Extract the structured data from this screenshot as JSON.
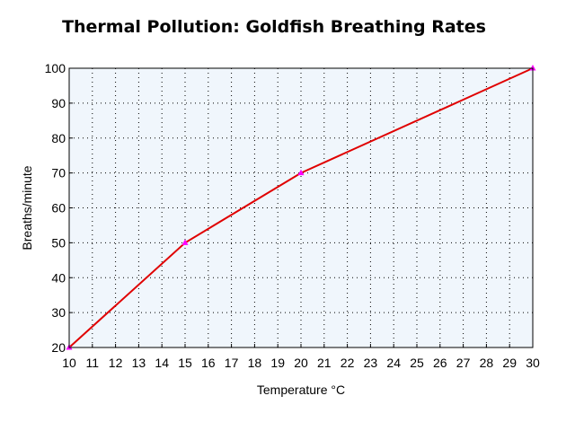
{
  "chart_data": {
    "type": "line",
    "title": "Thermal Pollution: Goldfish Breathing Rates",
    "xlabel": "Temperature °C",
    "ylabel": "Breaths/minute",
    "xlim": [
      10,
      30
    ],
    "ylim": [
      20,
      100
    ],
    "x_ticks": [
      10,
      11,
      12,
      13,
      14,
      15,
      16,
      17,
      18,
      19,
      20,
      21,
      22,
      23,
      24,
      25,
      26,
      27,
      28,
      29,
      30
    ],
    "y_ticks": [
      20,
      30,
      40,
      50,
      60,
      70,
      80,
      90,
      100
    ],
    "grid": true,
    "legend": "none",
    "colors": {
      "line": "#e00000",
      "marker": "#ff00ff",
      "plot_bg": "#f0f6fc",
      "grid": "#000000"
    },
    "series": [
      {
        "x": [
          10,
          15,
          20,
          30
        ],
        "y": [
          20,
          50,
          70,
          100
        ]
      }
    ]
  }
}
